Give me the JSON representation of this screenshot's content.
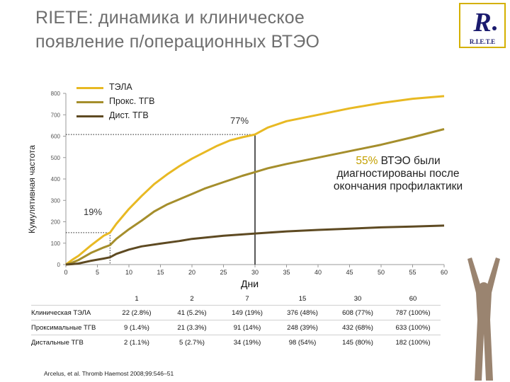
{
  "title": {
    "line1": "RIETE: динамика и клиническое",
    "line2": "появление п/операционных ВТЭО"
  },
  "logo": {
    "text": "R.I.E.T.E"
  },
  "annotations": {
    "pct_77": "77%",
    "pct_19": "19%",
    "note_highlight": "55%",
    "note_text": " ВТЭО были диагностированы после окончания профилактики"
  },
  "table": {
    "headers": [
      "1",
      "2",
      "7",
      "15",
      "30",
      "60"
    ],
    "rows": [
      {
        "label": "Клиническая ТЭЛА",
        "cells": [
          "22 (2.8%)",
          "41 (5.2%)",
          "149 (19%)",
          "376 (48%)",
          "608 (77%)",
          "787 (100%)"
        ]
      },
      {
        "label": "Проксимальные ТГВ",
        "cells": [
          "9 (1.4%)",
          "21 (3.3%)",
          "91 (14%)",
          "248 (39%)",
          "432 (68%)",
          "633 (100%)"
        ]
      },
      {
        "label": "Дистальные ТГВ",
        "cells": [
          "2 (1.1%)",
          "5 (2.7%)",
          "34 (19%)",
          "98 (54%)",
          "145 (80%)",
          "182 (100%)"
        ]
      }
    ]
  },
  "citation": "Arcelus, et al. Thromb Haemost 2008;99:546–51",
  "chart_data": {
    "type": "line",
    "xlabel": "Дни",
    "ylabel": "Кумулятивная частота",
    "xlim": [
      0,
      60
    ],
    "ylim": [
      0,
      800
    ],
    "xticks": [
      0,
      5,
      10,
      15,
      20,
      25,
      30,
      35,
      40,
      45,
      50,
      55,
      60
    ],
    "yticks": [
      0,
      100,
      200,
      300,
      400,
      500,
      600,
      700,
      800
    ],
    "legend_position": "top-left",
    "series": [
      {
        "name": "ТЭЛА",
        "color": "#e8b923",
        "x": [
          0,
          1,
          2,
          4,
          6,
          7,
          8,
          10,
          12,
          14,
          16,
          18,
          20,
          22,
          24,
          26,
          28,
          30,
          32,
          35,
          40,
          45,
          50,
          55,
          60
        ],
        "y": [
          0,
          22,
          41,
          90,
          135,
          149,
          190,
          260,
          320,
          376,
          420,
          460,
          495,
          525,
          555,
          580,
          595,
          608,
          640,
          670,
          700,
          730,
          755,
          775,
          787
        ]
      },
      {
        "name": "Прокс. ТГВ",
        "color": "#a58e2c",
        "x": [
          0,
          1,
          2,
          4,
          6,
          7,
          8,
          10,
          12,
          14,
          16,
          18,
          20,
          22,
          25,
          28,
          30,
          32,
          35,
          40,
          45,
          50,
          55,
          60
        ],
        "y": [
          0,
          9,
          21,
          55,
          80,
          91,
          120,
          165,
          205,
          248,
          280,
          305,
          330,
          355,
          385,
          415,
          432,
          450,
          470,
          500,
          530,
          560,
          595,
          633
        ]
      },
      {
        "name": "Дист. ТГВ",
        "color": "#5e4a22",
        "x": [
          0,
          1,
          2,
          4,
          6,
          7,
          8,
          10,
          12,
          15,
          18,
          20,
          25,
          30,
          35,
          40,
          45,
          50,
          55,
          60
        ],
        "y": [
          0,
          2,
          5,
          18,
          28,
          34,
          50,
          70,
          85,
          98,
          110,
          120,
          135,
          145,
          155,
          162,
          168,
          174,
          178,
          182
        ]
      }
    ],
    "markers": [
      {
        "label": "19%",
        "x": 7,
        "y": 149
      },
      {
        "label": "77%",
        "x": 30,
        "y": 608
      }
    ]
  }
}
